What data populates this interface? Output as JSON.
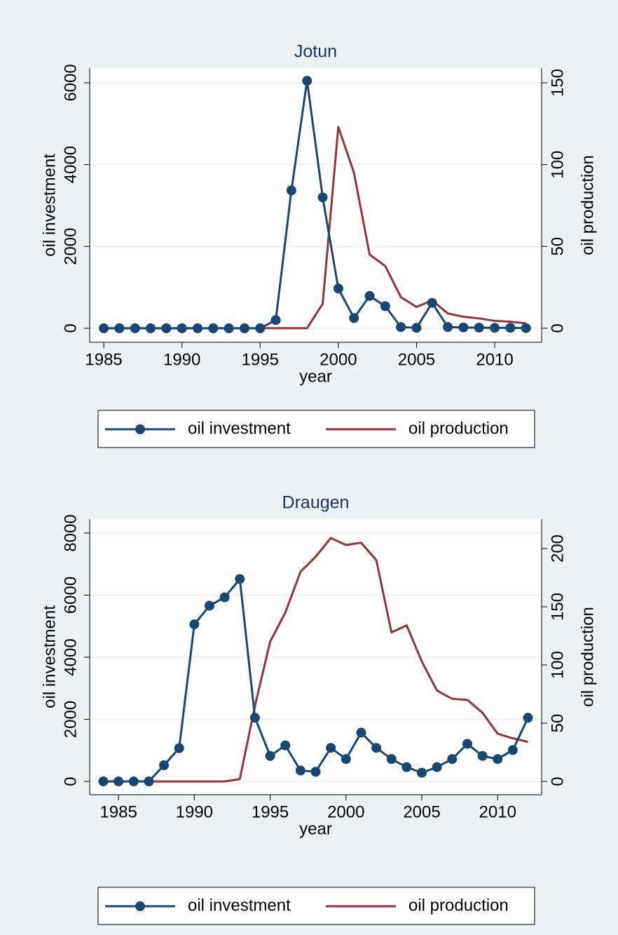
{
  "chart_data": [
    {
      "type": "line",
      "title": "Jotun",
      "xlabel": "year",
      "ylabel": "oil investment",
      "y2label": "oil production",
      "x": [
        1985,
        1986,
        1987,
        1988,
        1989,
        1990,
        1991,
        1992,
        1993,
        1994,
        1995,
        1996,
        1997,
        1998,
        1999,
        2000,
        2001,
        2002,
        2003,
        2004,
        2005,
        2006,
        2007,
        2008,
        2009,
        2010,
        2011,
        2012
      ],
      "series": [
        {
          "name": "oil investment",
          "color": "#1a476f",
          "marker": "circle",
          "values": [
            0,
            0,
            0,
            0,
            0,
            0,
            0,
            0,
            0,
            0,
            0,
            200,
            3370,
            6050,
            3200,
            970,
            250,
            790,
            540,
            30,
            10,
            620,
            30,
            20,
            15,
            10,
            10,
            5
          ]
        },
        {
          "name": "oil production",
          "color": "#90353b",
          "axis": "y2",
          "values": [
            0,
            0,
            0,
            0,
            0,
            0,
            0,
            0,
            0,
            0,
            0,
            0,
            0,
            0,
            15,
            123,
            95,
            45,
            38,
            19,
            13,
            17,
            9,
            7,
            6,
            4.5,
            4,
            3
          ]
        }
      ],
      "xlim": [
        1984.1,
        2013
      ],
      "xticks": [
        1985,
        1990,
        1995,
        2000,
        2005,
        2010
      ],
      "ylim": [
        -343,
        6360
      ],
      "yticks": [
        0,
        2000,
        4000,
        6000
      ],
      "y2lim": [
        -8.6,
        159
      ],
      "y2ticks": [
        0,
        50,
        100,
        150
      ],
      "grid": true,
      "legend": "bottom"
    },
    {
      "type": "line",
      "title": "Draugen",
      "xlabel": "year",
      "ylabel": "oil investment",
      "y2label": "oil production",
      "x": [
        1984,
        1985,
        1986,
        1987,
        1988,
        1989,
        1990,
        1991,
        1992,
        1993,
        1994,
        1995,
        1996,
        1997,
        1998,
        1999,
        2000,
        2001,
        2002,
        2003,
        2004,
        2005,
        2006,
        2007,
        2008,
        2009,
        2010,
        2011,
        2012
      ],
      "series": [
        {
          "name": "oil investment",
          "color": "#1a476f",
          "marker": "circle",
          "values": [
            0,
            0,
            0,
            0,
            520,
            1070,
            5060,
            5660,
            5930,
            6520,
            2050,
            820,
            1160,
            350,
            310,
            1080,
            720,
            1570,
            1080,
            720,
            460,
            280,
            460,
            720,
            1210,
            820,
            720,
            1010,
            2050
          ]
        },
        {
          "name": "oil production",
          "color": "#90353b",
          "axis": "y2",
          "values": [
            0,
            0,
            0,
            0,
            0,
            0,
            0,
            0,
            0,
            2,
            65,
            120,
            145,
            180,
            193,
            209,
            203,
            205,
            190,
            128,
            134,
            103,
            78,
            71,
            70,
            59,
            41,
            37,
            34
          ]
        }
      ],
      "xlim": [
        1983.1,
        2012.9
      ],
      "xticks": [
        1985,
        1990,
        1995,
        2000,
        2005,
        2010
      ],
      "ylim": [
        -429,
        8452
      ],
      "yticks": [
        0,
        2000,
        4000,
        6000,
        8000
      ],
      "y2lim": [
        -11.4,
        225.3
      ],
      "y2ticks": [
        0,
        50,
        100,
        150,
        200
      ],
      "grid": true,
      "legend": "bottom"
    }
  ]
}
